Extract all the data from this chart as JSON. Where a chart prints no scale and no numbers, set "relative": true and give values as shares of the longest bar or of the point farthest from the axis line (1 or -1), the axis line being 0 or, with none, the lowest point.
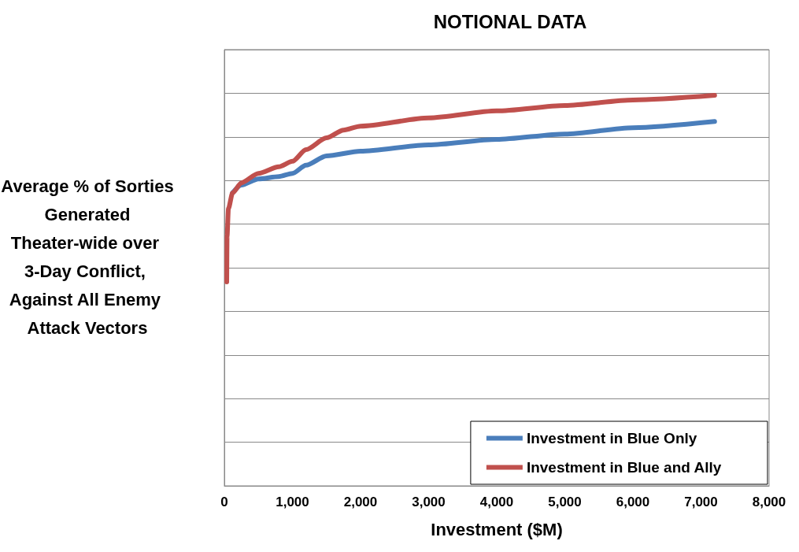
{
  "chart_data": {
    "type": "line",
    "title": "NOTIONAL DATA",
    "xlabel": "Investment ($M)",
    "ylabel": "Average % of Sorties Generated Theater-wide over 3-Day Conflict, Against All Enemy Attack Vectors",
    "relative": true,
    "xlim": [
      0,
      8000
    ],
    "xticks": [
      0,
      {
        "value": 1000,
        "label": "1,000"
      },
      {
        "value": 2000,
        "label": "2,000"
      },
      {
        "value": 3000,
        "label": "3,000"
      },
      {
        "value": 4000,
        "label": "4,000"
      },
      {
        "value": 5000,
        "label": "5,000"
      },
      {
        "value": 6000,
        "label": "6,000"
      },
      {
        "value": 7000,
        "label": "7,000"
      },
      {
        "value": 8000,
        "label": "8,000"
      }
    ],
    "tick_labels": "x",
    "grid": "y",
    "legend": "bottom right",
    "marker": "none",
    "line_style": "solid",
    "series": [
      {
        "name": "Investment in Blue Only",
        "color": "#4a7ebb",
        "x": [
          120,
          250,
          500,
          800,
          1000,
          1200,
          1500,
          2000,
          3000,
          4000,
          5000,
          6000,
          7200
        ],
        "values": [
          0.75,
          0.77,
          0.786,
          0.792,
          0.8,
          0.821,
          0.845,
          0.857,
          0.873,
          0.887,
          0.901,
          0.917,
          0.933
        ]
      },
      {
        "name": "Investment in Blue and Ally",
        "color": "#c0504d",
        "x": [
          35,
          40,
          60,
          120,
          250,
          500,
          800,
          1000,
          1200,
          1500,
          1750,
          2000,
          3000,
          4000,
          5000,
          6000,
          7200
        ],
        "values": [
          0.522,
          0.639,
          0.71,
          0.75,
          0.776,
          0.8,
          0.817,
          0.831,
          0.861,
          0.891,
          0.911,
          0.921,
          0.942,
          0.96,
          0.974,
          0.988,
          1
        ]
      }
    ]
  }
}
